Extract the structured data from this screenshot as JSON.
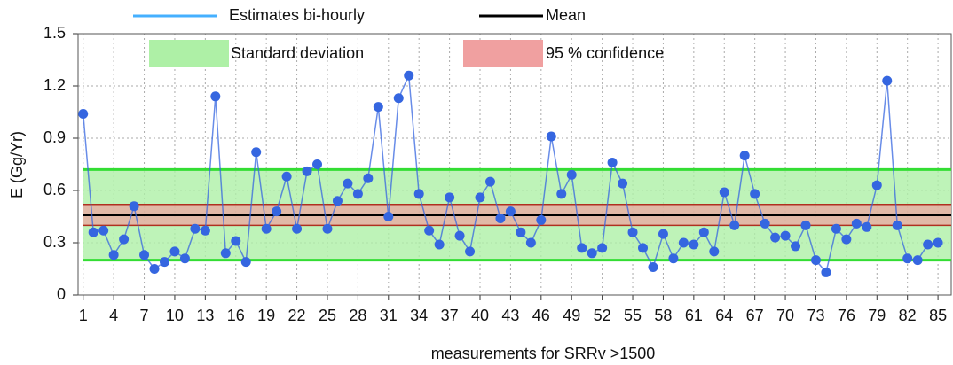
{
  "chart_data": {
    "type": "line",
    "x_label": "measurements for SRRv >1500",
    "y_label": "E (Gg/Yr)",
    "x": [
      1,
      2,
      3,
      4,
      5,
      6,
      7,
      8,
      9,
      10,
      11,
      12,
      13,
      14,
      15,
      16,
      17,
      18,
      19,
      20,
      21,
      22,
      23,
      24,
      25,
      26,
      27,
      28,
      29,
      30,
      31,
      32,
      33,
      34,
      35,
      36,
      37,
      38,
      39,
      40,
      41,
      42,
      43,
      44,
      45,
      46,
      47,
      48,
      49,
      50,
      51,
      52,
      53,
      54,
      55,
      56,
      57,
      58,
      59,
      60,
      61,
      62,
      63,
      64,
      65,
      66,
      67,
      68,
      69,
      70,
      71,
      72,
      73,
      74,
      75,
      76,
      77,
      78,
      79,
      80,
      81,
      82,
      83,
      84,
      85
    ],
    "xlim": [
      0.5,
      86.3
    ],
    "xticks": [
      1,
      4,
      7,
      10,
      13,
      16,
      19,
      22,
      25,
      28,
      31,
      34,
      37,
      40,
      43,
      46,
      49,
      52,
      55,
      58,
      61,
      64,
      67,
      70,
      73,
      76,
      79,
      82,
      85
    ],
    "ylim": [
      0,
      1.5
    ],
    "yticks": [
      0,
      0.3,
      0.6,
      0.9,
      1.2,
      1.5
    ],
    "grid": true,
    "series": [
      {
        "name": "Estimates bi-hourly",
        "color": "#3566e0",
        "values": [
          1.04,
          0.36,
          0.37,
          0.23,
          0.32,
          0.51,
          0.23,
          0.15,
          0.19,
          0.25,
          0.21,
          0.38,
          0.37,
          1.14,
          0.24,
          0.31,
          0.19,
          0.82,
          0.38,
          0.48,
          0.68,
          0.38,
          0.71,
          0.75,
          0.38,
          0.54,
          0.64,
          0.58,
          0.67,
          1.08,
          0.45,
          1.13,
          1.26,
          0.58,
          0.37,
          0.29,
          0.56,
          0.34,
          0.25,
          0.56,
          0.65,
          0.44,
          0.48,
          0.36,
          0.3,
          0.43,
          0.91,
          0.58,
          0.69,
          0.27,
          0.24,
          0.27,
          0.76,
          0.64,
          0.36,
          0.27,
          0.16,
          0.35,
          0.21,
          0.3,
          0.29,
          0.36,
          0.25,
          0.59,
          0.4,
          0.8,
          0.58,
          0.41,
          0.33,
          0.34,
          0.28,
          0.4,
          0.2,
          0.13,
          0.38,
          0.32,
          0.41,
          0.39,
          0.63,
          1.23,
          0.4,
          0.21,
          0.2,
          0.29,
          0.3
        ]
      }
    ],
    "mean": {
      "name": "Mean",
      "color": "#000000",
      "value": 0.46
    },
    "bands": [
      {
        "name": "Standard deviation",
        "color": "#33dd33",
        "fill": "#aef0a6",
        "range": [
          0.2,
          0.72
        ]
      },
      {
        "name": "95 % confidence",
        "color": "#b03020",
        "fill": "#f0a0a0",
        "range": [
          0.4,
          0.52
        ]
      }
    ]
  }
}
